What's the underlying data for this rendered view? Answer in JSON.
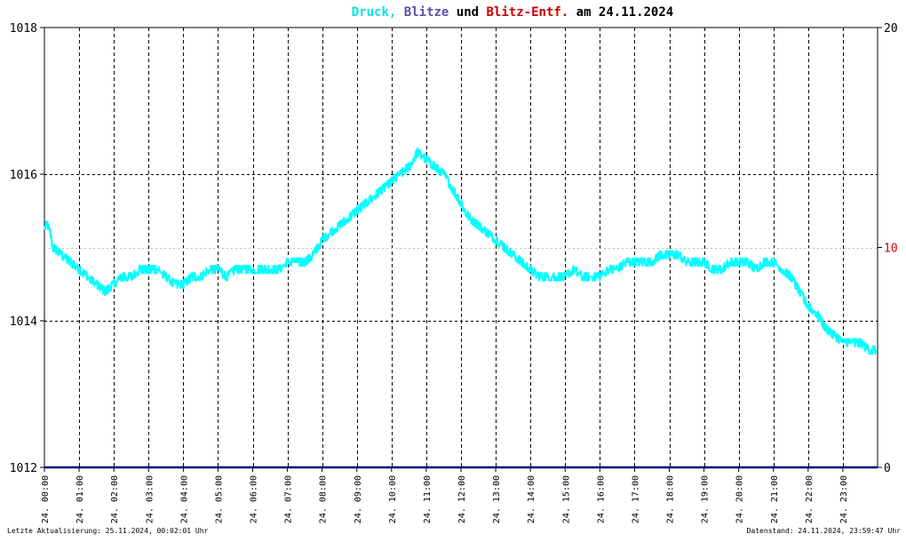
{
  "title": {
    "parts": [
      {
        "text": "Druck,",
        "color": "#00e5e5"
      },
      {
        "text": " ",
        "color": "#000000"
      },
      {
        "text": "Blitze",
        "color": "#5555aa"
      },
      {
        "text": " und ",
        "color": "#000000"
      },
      {
        "text": "Blitz-Entf.",
        "color": "#cc0000"
      },
      {
        "text": " am 24.11.2024",
        "color": "#000000"
      }
    ]
  },
  "footer": {
    "left": "Letzte Aktualisierung: 25.11.2024, 00:02:01 Uhr",
    "right": "Datenstand: 24.11.2024, 23:59:47 Uhr"
  },
  "colors": {
    "pressure": "#00ffff",
    "lightning": "#000080",
    "distance": "#cc0000",
    "grid": "#000000",
    "background": "#ffffff"
  },
  "chart_data": {
    "type": "line",
    "title": "Druck, Blitze und Blitz-Entf. am 24.11.2024",
    "left_axis": {
      "ticks": [
        "1018",
        "1016",
        "1014",
        "1012"
      ],
      "tick_values": [
        1018,
        1016,
        1014,
        1012
      ],
      "ylim": [
        1012,
        1018
      ]
    },
    "right_axis": {
      "ticks": [
        "20",
        "10",
        "0"
      ],
      "tick_values": [
        20,
        10,
        0
      ],
      "ylim": [
        0,
        20
      ],
      "mid_tick_color": "#cc0000"
    },
    "x_ticks": [
      "24. 00:00",
      "24. 01:00",
      "24. 02:00",
      "24. 03:00",
      "24. 04:00",
      "24. 05:00",
      "24. 06:00",
      "24. 07:00",
      "24. 08:00",
      "24. 09:00",
      "24. 10:00",
      "24. 11:00",
      "24. 12:00",
      "24. 13:00",
      "24. 14:00",
      "24. 15:00",
      "24. 16:00",
      "24. 17:00",
      "24. 18:00",
      "24. 19:00",
      "24. 20:00",
      "24. 21:00",
      "24. 22:00",
      "24. 23:00"
    ],
    "xlim_hours": [
      0,
      24
    ],
    "grid": true,
    "series": [
      {
        "name": "Druck",
        "axis": "left",
        "x_hours": [
          0.0,
          0.1,
          0.25,
          0.5,
          0.75,
          1.0,
          1.25,
          1.5,
          1.75,
          2.0,
          2.25,
          2.5,
          2.75,
          3.0,
          3.25,
          3.5,
          3.75,
          4.0,
          4.25,
          4.5,
          4.75,
          5.0,
          5.25,
          5.5,
          5.75,
          6.0,
          6.25,
          6.5,
          6.75,
          7.0,
          7.25,
          7.5,
          7.75,
          8.0,
          8.25,
          8.5,
          8.75,
          9.0,
          9.25,
          9.5,
          9.75,
          10.0,
          10.25,
          10.5,
          10.75,
          11.0,
          11.25,
          11.5,
          11.75,
          12.0,
          12.25,
          12.5,
          12.75,
          13.0,
          13.25,
          13.5,
          13.75,
          14.0,
          14.25,
          14.5,
          14.75,
          15.0,
          15.25,
          15.5,
          15.75,
          16.0,
          16.25,
          16.5,
          16.75,
          17.0,
          17.25,
          17.5,
          17.75,
          18.0,
          18.25,
          18.5,
          18.75,
          19.0,
          19.25,
          19.5,
          19.75,
          20.0,
          20.25,
          20.5,
          20.75,
          21.0,
          21.25,
          21.5,
          21.75,
          22.0,
          22.25,
          22.5,
          22.75,
          23.0,
          23.25,
          23.5,
          23.75,
          23.95
        ],
        "values": [
          1015.3,
          1015.3,
          1015.0,
          1014.9,
          1014.8,
          1014.7,
          1014.6,
          1014.5,
          1014.4,
          1014.5,
          1014.6,
          1014.6,
          1014.7,
          1014.7,
          1014.7,
          1014.6,
          1014.5,
          1014.5,
          1014.6,
          1014.6,
          1014.7,
          1014.7,
          1014.6,
          1014.7,
          1014.7,
          1014.7,
          1014.7,
          1014.7,
          1014.7,
          1014.8,
          1014.8,
          1014.8,
          1014.9,
          1015.1,
          1015.2,
          1015.3,
          1015.4,
          1015.5,
          1015.6,
          1015.7,
          1015.8,
          1015.9,
          1016.0,
          1016.1,
          1016.3,
          1016.2,
          1016.1,
          1016.0,
          1015.8,
          1015.6,
          1015.4,
          1015.3,
          1015.2,
          1015.1,
          1015.0,
          1014.9,
          1014.8,
          1014.7,
          1014.6,
          1014.6,
          1014.6,
          1014.6,
          1014.7,
          1014.6,
          1014.6,
          1014.6,
          1014.7,
          1014.7,
          1014.8,
          1014.8,
          1014.8,
          1014.8,
          1014.9,
          1014.9,
          1014.9,
          1014.8,
          1014.8,
          1014.8,
          1014.7,
          1014.7,
          1014.8,
          1014.8,
          1014.8,
          1014.7,
          1014.8,
          1014.8,
          1014.7,
          1014.6,
          1014.4,
          1014.2,
          1014.1,
          1013.9,
          1013.8,
          1013.7,
          1013.7,
          1013.7,
          1013.6,
          1013.6
        ]
      },
      {
        "name": "Blitze",
        "axis": "right",
        "x_hours": [
          0,
          24
        ],
        "values": [
          0,
          0
        ]
      }
    ]
  }
}
